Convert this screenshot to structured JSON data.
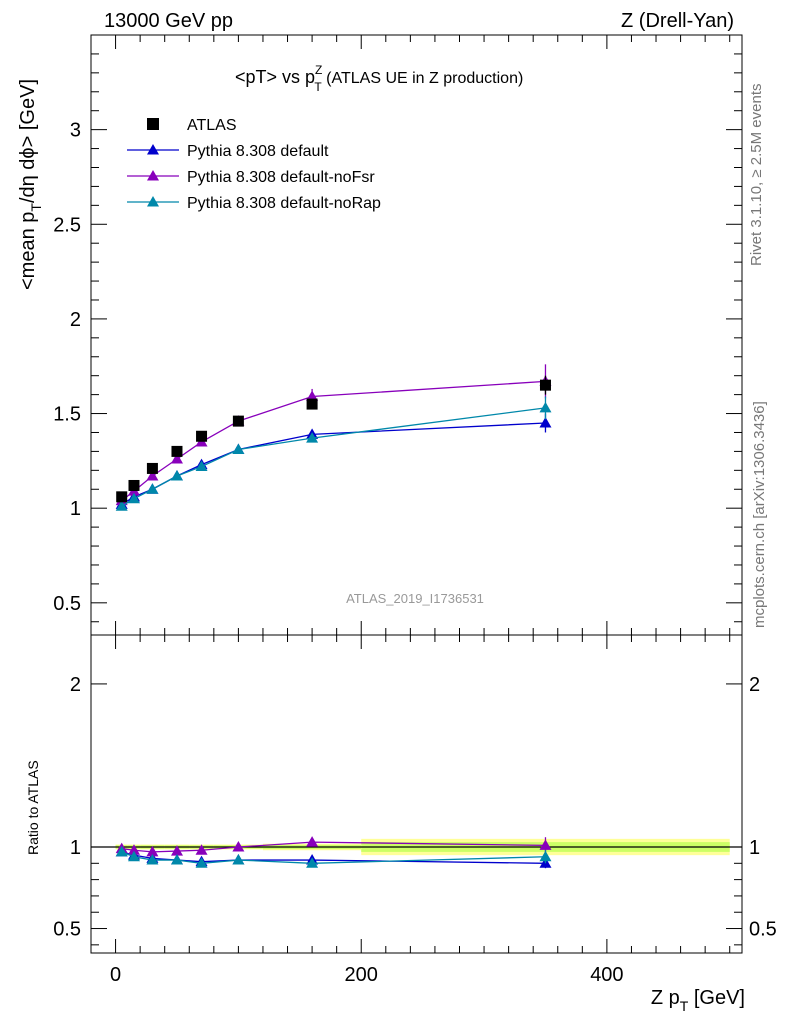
{
  "header": {
    "left": "13000 GeV pp",
    "right": "Z (Drell-Yan)"
  },
  "side_labels": {
    "rivet": "Rivet 3.1.10, ≥ 2.5M events",
    "mcplots": "mcplots.cern.ch [arXiv:1306.3436]"
  },
  "plot_title": {
    "main": "<pT> vs p",
    "sup": "Z",
    "sub": "T",
    "rest": " (ATLAS UE in Z production)"
  },
  "watermark": "ATLAS_2019_I1736531",
  "ylabel_top": {
    "a": "<mean p",
    "sub": "T",
    "b": "/dη dϕ> [GeV]"
  },
  "ylabel_bottom": "Ratio to ATLAS",
  "xlabel": {
    "a": "Z p",
    "sub": "T",
    "b": " [GeV]"
  },
  "colors": {
    "data": "#000000",
    "default": "#0000cc",
    "noFsr": "#8800bb",
    "noRap": "#0088aa",
    "band_inner": "#ccff66",
    "band_outer": "#ffff99"
  },
  "chart_data": [
    {
      "type": "line",
      "panel": "main",
      "xlim": [
        -20,
        510
      ],
      "ylim": [
        0.33,
        3.5
      ],
      "x_ticks": [
        0,
        200,
        400
      ],
      "y_ticks": [
        0.5,
        1,
        1.5,
        2,
        2.5,
        3
      ],
      "y_tick_labels": [
        "0.5",
        "1",
        "1.5",
        "2",
        "2.5",
        "3"
      ],
      "legend_position": "top-left",
      "data": {
        "name": "ATLAS",
        "x": [
          5,
          15,
          30,
          50,
          70,
          100,
          160,
          350
        ],
        "y": [
          1.06,
          1.12,
          1.21,
          1.3,
          1.38,
          1.46,
          1.55,
          1.65
        ],
        "err": [
          0.01,
          0.01,
          0.01,
          0.01,
          0.01,
          0.01,
          0.02,
          0.05
        ]
      },
      "series": [
        {
          "name": "Pythia 8.308 default",
          "color_key": "default",
          "x": [
            5,
            15,
            30,
            50,
            70,
            100,
            160,
            350
          ],
          "y": [
            1.02,
            1.06,
            1.1,
            1.17,
            1.23,
            1.31,
            1.39,
            1.45
          ],
          "err": [
            0.005,
            0.005,
            0.005,
            0.01,
            0.01,
            0.01,
            0.02,
            0.05
          ]
        },
        {
          "name": "Pythia 8.308 default-noFsr",
          "color_key": "noFsr",
          "x": [
            5,
            15,
            30,
            50,
            70,
            100,
            160,
            350
          ],
          "y": [
            1.04,
            1.09,
            1.17,
            1.26,
            1.35,
            1.46,
            1.59,
            1.67
          ],
          "err": [
            0.005,
            0.005,
            0.005,
            0.01,
            0.01,
            0.01,
            0.04,
            0.09
          ]
        },
        {
          "name": "Pythia 8.308 default-noRap",
          "color_key": "noRap",
          "x": [
            5,
            15,
            30,
            50,
            70,
            100,
            160,
            350
          ],
          "y": [
            1.01,
            1.05,
            1.1,
            1.17,
            1.22,
            1.31,
            1.37,
            1.53
          ],
          "err": [
            0.005,
            0.005,
            0.005,
            0.01,
            0.01,
            0.01,
            0.02,
            0.06
          ]
        }
      ]
    },
    {
      "type": "line",
      "panel": "ratio",
      "xlim": [
        -20,
        510
      ],
      "ylim": [
        0.35,
        2.3
      ],
      "x_ticks": [
        0,
        200,
        400
      ],
      "x_tick_labels": [
        "0",
        "200",
        "400"
      ],
      "y_ticks": [
        0.5,
        1,
        2
      ],
      "y_tick_labels": [
        "0.5",
        "1",
        "2"
      ],
      "reference_band": {
        "x_edges": [
          0,
          10,
          20,
          40,
          60,
          80,
          120,
          200,
          500
        ],
        "inner": [
          0.01,
          0.01,
          0.01,
          0.01,
          0.01,
          0.01,
          0.013,
          0.03
        ],
        "outer": [
          0.015,
          0.015,
          0.015,
          0.015,
          0.015,
          0.015,
          0.02,
          0.05
        ]
      },
      "series": [
        {
          "name": "Pythia 8.308 default",
          "color_key": "default",
          "x": [
            5,
            15,
            30,
            50,
            70,
            100,
            160,
            350
          ],
          "y": [
            0.97,
            0.95,
            0.93,
            0.92,
            0.91,
            0.92,
            0.92,
            0.9
          ],
          "err": [
            0.005,
            0.005,
            0.005,
            0.01,
            0.01,
            0.01,
            0.013,
            0.03
          ]
        },
        {
          "name": "Pythia 8.308 default-noFsr",
          "color_key": "noFsr",
          "x": [
            5,
            15,
            30,
            50,
            70,
            100,
            160,
            350
          ],
          "y": [
            0.99,
            0.98,
            0.97,
            0.975,
            0.98,
            1.0,
            1.03,
            1.01
          ],
          "err": [
            0.005,
            0.005,
            0.005,
            0.01,
            0.01,
            0.01,
            0.025,
            0.05
          ]
        },
        {
          "name": "Pythia 8.308 default-noRap",
          "color_key": "noRap",
          "x": [
            5,
            15,
            30,
            50,
            70,
            100,
            160,
            350
          ],
          "y": [
            0.97,
            0.94,
            0.92,
            0.92,
            0.9,
            0.92,
            0.9,
            0.94
          ],
          "err": [
            0.005,
            0.005,
            0.005,
            0.01,
            0.01,
            0.01,
            0.013,
            0.04
          ]
        }
      ]
    }
  ]
}
